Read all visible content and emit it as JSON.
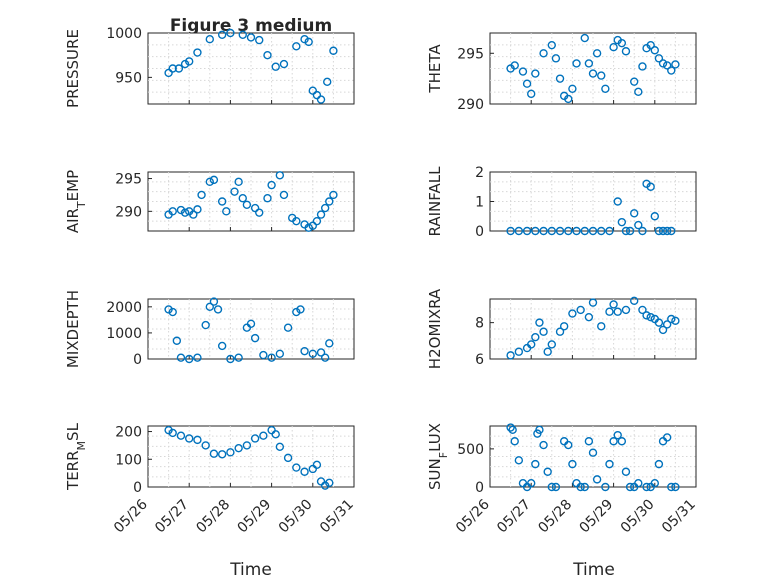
{
  "figure": {
    "title": "Figure 3 medium",
    "xlabel": "Time",
    "xticks": [
      "05/26",
      "05/27",
      "05/28",
      "05/29",
      "05/30",
      "05/31"
    ],
    "marker_color": "#0072bd",
    "axis_color": "#262626",
    "grid_color": "#d7d7d7"
  },
  "chart_data": [
    {
      "type": "scatter",
      "ylabel": "PRESSURE",
      "ylim": [
        920,
        1000
      ],
      "yticks": [
        950,
        1000
      ],
      "grid": true,
      "xlim": [
        "05/26",
        "05/31"
      ],
      "x_days": [
        0.5,
        0.6,
        0.75,
        0.9,
        1.0,
        1.2,
        1.5,
        1.8,
        2.0,
        2.3,
        2.5,
        2.7,
        2.9,
        3.1,
        3.3,
        3.6,
        3.8,
        3.9,
        4.0,
        4.1,
        4.2,
        4.35,
        4.5
      ],
      "y": [
        955,
        960,
        960,
        965,
        968,
        978,
        993,
        998,
        1000,
        998,
        995,
        992,
        975,
        962,
        965,
        985,
        993,
        990,
        935,
        930,
        925,
        945,
        980
      ]
    },
    {
      "type": "scatter",
      "ylabel": "THETA",
      "ylim": [
        290,
        297
      ],
      "yticks": [
        290,
        295
      ],
      "grid": true,
      "xlim": [
        "05/26",
        "05/31"
      ],
      "x_days": [
        0.5,
        0.6,
        0.8,
        0.9,
        1.0,
        1.1,
        1.3,
        1.5,
        1.6,
        1.7,
        1.8,
        1.9,
        2.0,
        2.1,
        2.3,
        2.4,
        2.5,
        2.6,
        2.7,
        2.8,
        3.0,
        3.1,
        3.2,
        3.3,
        3.5,
        3.6,
        3.7,
        3.8,
        3.9,
        4.0,
        4.1,
        4.2,
        4.3,
        4.4,
        4.5
      ],
      "y": [
        293.5,
        293.8,
        293.2,
        292,
        291.0,
        293,
        295,
        295.8,
        294.5,
        292.5,
        290.8,
        290.5,
        291.5,
        294,
        296.5,
        294,
        293,
        295,
        292.8,
        291.5,
        295.6,
        296.3,
        296,
        295.2,
        292.2,
        291.2,
        293.7,
        295.5,
        295.8,
        295.3,
        294.5,
        294,
        293.8,
        293.3,
        293.9
      ]
    },
    {
      "type": "scatter",
      "ylabel": "AIR_TEMP",
      "ylim": [
        287,
        296
      ],
      "yticks": [
        290,
        295
      ],
      "grid": true,
      "xlim": [
        "05/26",
        "05/31"
      ],
      "x_days": [
        0.5,
        0.6,
        0.8,
        0.9,
        1.0,
        1.1,
        1.2,
        1.3,
        1.5,
        1.6,
        1.8,
        1.9,
        2.1,
        2.2,
        2.3,
        2.4,
        2.6,
        2.7,
        2.9,
        3.0,
        3.2,
        3.3,
        3.5,
        3.6,
        3.8,
        3.9,
        4.0,
        4.1,
        4.2,
        4.3,
        4.4,
        4.5
      ],
      "y": [
        289.5,
        290,
        290.2,
        289.8,
        290,
        289.5,
        290.3,
        292.5,
        294.5,
        294.8,
        291.5,
        290,
        293,
        294.5,
        292,
        291,
        290.5,
        289.8,
        292,
        294,
        295.5,
        292.5,
        289,
        288.5,
        288,
        287.5,
        287.8,
        288.5,
        289.5,
        290.5,
        291.5,
        292.5
      ]
    },
    {
      "type": "scatter",
      "ylabel": "RAINFALL",
      "ylim": [
        0,
        2
      ],
      "yticks": [
        0,
        1,
        2
      ],
      "grid": true,
      "xlim": [
        "05/26",
        "05/31"
      ],
      "x_days": [
        0.5,
        0.7,
        0.9,
        1.1,
        1.3,
        1.5,
        1.7,
        1.9,
        2.1,
        2.3,
        2.5,
        2.7,
        2.9,
        3.1,
        3.2,
        3.3,
        3.4,
        3.5,
        3.6,
        3.7,
        3.8,
        3.9,
        4.0,
        4.1,
        4.2,
        4.3,
        4.4
      ],
      "y": [
        0,
        0,
        0,
        0,
        0,
        0,
        0,
        0,
        0,
        0,
        0,
        0,
        0,
        1.0,
        0.3,
        0,
        0,
        0.6,
        0.2,
        0,
        1.6,
        1.5,
        0.5,
        0,
        0,
        0,
        0
      ]
    },
    {
      "type": "scatter",
      "ylabel": "MIXDEPTH",
      "ylim": [
        0,
        2300
      ],
      "yticks": [
        0,
        1000,
        2000
      ],
      "grid": true,
      "xlim": [
        "05/26",
        "05/31"
      ],
      "x_days": [
        0.5,
        0.6,
        0.7,
        0.8,
        1.0,
        1.2,
        1.4,
        1.5,
        1.6,
        1.7,
        1.8,
        2.0,
        2.2,
        2.4,
        2.5,
        2.6,
        2.8,
        3.0,
        3.2,
        3.4,
        3.6,
        3.7,
        3.8,
        4.0,
        4.2,
        4.3,
        4.4
      ],
      "y": [
        1900,
        1800,
        700,
        50,
        0,
        50,
        1300,
        2000,
        2200,
        1900,
        500,
        0,
        50,
        1200,
        1350,
        800,
        150,
        50,
        200,
        1200,
        1800,
        1900,
        300,
        200,
        250,
        50,
        600
      ]
    },
    {
      "type": "scatter",
      "ylabel": "H2OMIXRA",
      "ylim": [
        6,
        9.3
      ],
      "yticks": [
        6,
        8
      ],
      "grid": true,
      "xlim": [
        "05/26",
        "05/31"
      ],
      "x_days": [
        0.5,
        0.7,
        0.9,
        1.0,
        1.1,
        1.2,
        1.3,
        1.4,
        1.5,
        1.7,
        1.8,
        2.0,
        2.2,
        2.4,
        2.5,
        2.7,
        2.9,
        3.0,
        3.1,
        3.3,
        3.5,
        3.7,
        3.8,
        3.9,
        4.0,
        4.1,
        4.2,
        4.3,
        4.4,
        4.5
      ],
      "y": [
        6.2,
        6.4,
        6.6,
        6.8,
        7.2,
        8.0,
        7.5,
        6.4,
        6.8,
        7.5,
        7.8,
        8.5,
        8.7,
        8.3,
        9.1,
        7.8,
        8.6,
        9.0,
        8.6,
        8.7,
        9.2,
        8.7,
        8.4,
        8.3,
        8.2,
        8.0,
        7.6,
        7.9,
        8.2,
        8.1
      ]
    },
    {
      "type": "scatter",
      "ylabel": "TERR_MSL",
      "ylim": [
        0,
        220
      ],
      "yticks": [
        0,
        100,
        200
      ],
      "grid": true,
      "xlim": [
        "05/26",
        "05/31"
      ],
      "x_days": [
        0.5,
        0.6,
        0.8,
        1.0,
        1.2,
        1.4,
        1.6,
        1.8,
        2.0,
        2.2,
        2.4,
        2.6,
        2.8,
        3.0,
        3.1,
        3.2,
        3.4,
        3.6,
        3.8,
        4.0,
        4.1,
        4.2,
        4.3,
        4.4
      ],
      "y": [
        205,
        195,
        185,
        175,
        170,
        150,
        120,
        118,
        125,
        140,
        150,
        175,
        185,
        205,
        190,
        145,
        105,
        70,
        55,
        65,
        80,
        20,
        5,
        15
      ]
    },
    {
      "type": "scatter",
      "ylabel": "SUN_FLUX",
      "ylim": [
        0,
        800
      ],
      "yticks": [
        0,
        500
      ],
      "grid": true,
      "xlim": [
        "05/26",
        "05/31"
      ],
      "x_days": [
        0.5,
        0.55,
        0.6,
        0.7,
        0.8,
        0.9,
        1.0,
        1.1,
        1.15,
        1.2,
        1.3,
        1.4,
        1.5,
        1.6,
        1.8,
        1.9,
        2.0,
        2.1,
        2.2,
        2.3,
        2.4,
        2.5,
        2.6,
        2.8,
        2.9,
        3.0,
        3.1,
        3.2,
        3.3,
        3.4,
        3.5,
        3.6,
        3.8,
        3.9,
        4.0,
        4.1,
        4.2,
        4.3,
        4.4,
        4.5
      ],
      "y": [
        780,
        750,
        600,
        350,
        50,
        0,
        50,
        300,
        700,
        750,
        550,
        200,
        0,
        0,
        600,
        550,
        300,
        50,
        0,
        0,
        600,
        450,
        100,
        0,
        300,
        600,
        680,
        600,
        200,
        0,
        0,
        50,
        0,
        0,
        50,
        300,
        600,
        650,
        0,
        0
      ]
    }
  ]
}
